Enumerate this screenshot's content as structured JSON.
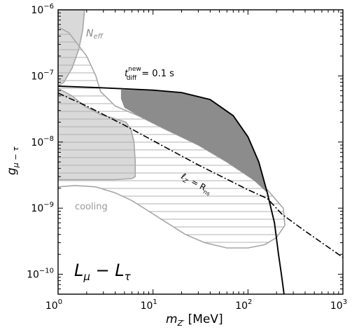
{
  "chart_data": {
    "type": "line",
    "title": "",
    "xlabel_main": "m",
    "xlabel_sub": "Z′",
    "xlabel_unit": "[MeV]",
    "ylabel_main": "g",
    "ylabel_sub": "μ − τ",
    "xscale": "log",
    "yscale": "log",
    "xlim": [
      1,
      1000
    ],
    "ylim": [
      5e-11,
      1e-06
    ],
    "grid": false,
    "x_ticks": [
      {
        "base": "10",
        "exp": "0",
        "value": 1
      },
      {
        "base": "10",
        "exp": "1",
        "value": 10
      },
      {
        "base": "10",
        "exp": "2",
        "value": 100
      },
      {
        "base": "10",
        "exp": "3",
        "value": 1000
      }
    ],
    "y_ticks": [
      {
        "base": "10",
        "exp": "−10",
        "value": 1e-10
      },
      {
        "base": "10",
        "exp": "−9",
        "value": 1e-09
      },
      {
        "base": "10",
        "exp": "−8",
        "value": 1e-08
      },
      {
        "base": "10",
        "exp": "−7",
        "value": 1e-07
      },
      {
        "base": "10",
        "exp": "−6",
        "value": 1e-06
      }
    ],
    "model_label": {
      "main": "L",
      "sub1": "μ",
      "minus": " − ",
      "main2": "L",
      "sub2": "τ"
    },
    "region_labels": {
      "neff": {
        "main": "N",
        "sub": "eff"
      },
      "cooling": "cooling",
      "tdiff": {
        "main": "t",
        "sup": "new",
        "sub": "diff",
        "eq": " = 0.1 s"
      },
      "lz": {
        "main": "ℓ",
        "sub": "Z′",
        "eq": " = R",
        "sub2": "ns"
      }
    },
    "colors": {
      "neff_fill": "#d9d9d9",
      "cooling_fill": "#e8e8e8",
      "dark_fill": "#8c8c8c",
      "region_edge": "#a6a6a6",
      "hatch_line": "#b0b0b0",
      "curve": "#000000"
    },
    "series": {
      "neff_region": [
        [
          1,
          1e-06
        ],
        [
          1.9,
          1e-06
        ],
        [
          1.82,
          5e-07
        ],
        [
          1.65,
          2.5e-07
        ],
        [
          1.4,
          1.3e-07
        ],
        [
          1.15,
          8e-08
        ],
        [
          1,
          7e-08
        ]
      ],
      "cooling_region": [
        [
          1,
          2.7e-09
        ],
        [
          1,
          6.5e-08
        ],
        [
          1.4,
          5e-08
        ],
        [
          1.9,
          3.5e-08
        ],
        [
          2.8,
          2.6e-08
        ],
        [
          3.8,
          2.3e-08
        ],
        [
          5.2,
          2e-08
        ],
        [
          5.9,
          1.5e-08
        ],
        [
          6.3,
          1e-08
        ],
        [
          6.5,
          5e-09
        ],
        [
          6.5,
          3e-09
        ],
        [
          6,
          2.8e-09
        ],
        [
          4,
          2.7e-09
        ],
        [
          2,
          2.7e-09
        ],
        [
          1,
          2.7e-09
        ]
      ],
      "cooling_bound": [
        [
          1,
          2.1e-09
        ],
        [
          1.5,
          2.2e-09
        ],
        [
          2.5,
          2.1e-09
        ],
        [
          4,
          1.7e-09
        ],
        [
          6,
          1.3e-09
        ],
        [
          9,
          9e-10
        ],
        [
          14,
          6e-10
        ],
        [
          22,
          4e-10
        ],
        [
          35,
          3e-10
        ],
        [
          60,
          2.5e-10
        ],
        [
          100,
          2.5e-10
        ],
        [
          150,
          2.8e-10
        ],
        [
          200,
          3.6e-10
        ],
        [
          245,
          5.5e-10
        ],
        [
          235,
          1e-09
        ],
        [
          160,
          1.9e-09
        ],
        [
          110,
          2.8e-09
        ],
        [
          60,
          5e-09
        ],
        [
          30,
          9e-09
        ],
        [
          13,
          1.6e-08
        ],
        [
          7,
          2.5e-08
        ],
        [
          4,
          3.5e-08
        ],
        [
          2.8,
          5.8e-08
        ],
        [
          2.5,
          1e-07
        ],
        [
          2,
          2e-07
        ],
        [
          1.3,
          4.5e-07
        ],
        [
          1,
          5.5e-07
        ]
      ],
      "hatched_region": [
        [
          1,
          2.1e-09
        ],
        [
          1.5,
          2.2e-09
        ],
        [
          2.5,
          2.1e-09
        ],
        [
          4,
          1.7e-09
        ],
        [
          6,
          1.3e-09
        ],
        [
          9,
          9e-10
        ],
        [
          14,
          6e-10
        ],
        [
          22,
          4e-10
        ],
        [
          35,
          3e-10
        ],
        [
          60,
          2.5e-10
        ],
        [
          100,
          2.5e-10
        ],
        [
          150,
          2.8e-10
        ],
        [
          200,
          3.6e-10
        ],
        [
          245,
          5.5e-10
        ],
        [
          235,
          1e-09
        ],
        [
          160,
          1.9e-09
        ],
        [
          110,
          2.8e-09
        ],
        [
          60,
          5e-09
        ],
        [
          30,
          9e-09
        ],
        [
          13,
          1.6e-08
        ],
        [
          7,
          2.5e-08
        ],
        [
          4,
          3.5e-08
        ],
        [
          2.8,
          5.8e-08
        ],
        [
          2.5,
          1e-07
        ],
        [
          2,
          2e-07
        ],
        [
          1.3,
          4.5e-07
        ],
        [
          1,
          5.5e-07
        ]
      ],
      "dark_region": [
        [
          4.6,
          6.2e-08
        ],
        [
          10,
          6.1e-08
        ],
        [
          20,
          5.6e-08
        ],
        [
          40,
          4.4e-08
        ],
        [
          70,
          2.5e-08
        ],
        [
          100,
          1.2e-08
        ],
        [
          130,
          5e-09
        ],
        [
          160,
          1.7e-09
        ],
        [
          110,
          2.8e-09
        ],
        [
          60,
          5e-09
        ],
        [
          30,
          9e-09
        ],
        [
          13,
          1.6e-08
        ],
        [
          7,
          2.5e-08
        ],
        [
          5,
          3.3e-08
        ],
        [
          4.6,
          4.5e-08
        ]
      ],
      "tdiff_curve": [
        [
          1,
          7e-08
        ],
        [
          3,
          6.6e-08
        ],
        [
          10,
          6.1e-08
        ],
        [
          20,
          5.6e-08
        ],
        [
          40,
          4.4e-08
        ],
        [
          70,
          2.5e-08
        ],
        [
          100,
          1.2e-08
        ],
        [
          130,
          5e-09
        ],
        [
          160,
          1.7e-09
        ],
        [
          190,
          6e-10
        ],
        [
          210,
          2e-10
        ],
        [
          225,
          1e-10
        ],
        [
          240,
          5e-11
        ]
      ],
      "lz_curve": [
        [
          1,
          5.5e-08
        ],
        [
          2,
          3.5e-08
        ],
        [
          5,
          1.8e-08
        ],
        [
          10,
          1.05e-08
        ],
        [
          30,
          4.5e-09
        ],
        [
          100,
          1.9e-09
        ],
        [
          160,
          1.4e-09
        ],
        [
          230,
          8e-10
        ],
        [
          400,
          4.5e-10
        ],
        [
          1000,
          1.8e-10
        ]
      ]
    }
  }
}
